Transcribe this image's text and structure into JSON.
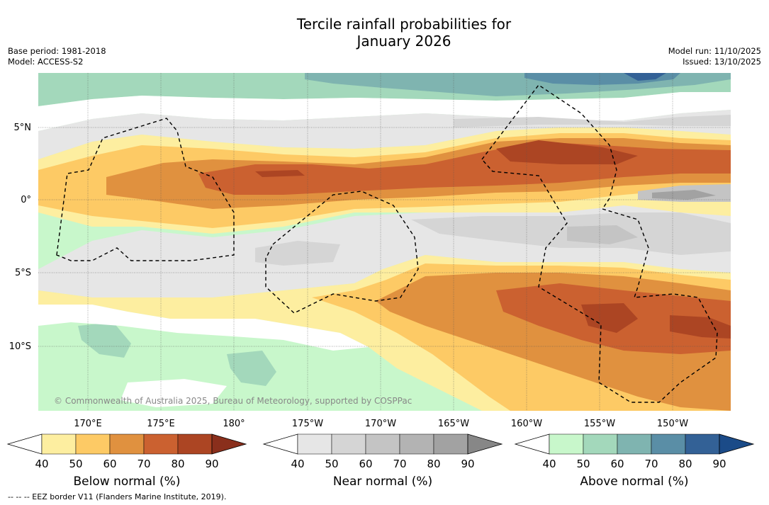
{
  "title_line1": "Tercile rainfall probabilities for",
  "title_line2": "January 2026",
  "base_period": "Base period: 1981-2018",
  "model": "Model: ACCESS-S2",
  "model_run": "Model run: 11/10/2025",
  "issued": "Issued: 13/10/2025",
  "copyright": "© Commonwealth of Australia 2025, Bureau of Meteorology, supported by COSPPac",
  "lat_labels": [
    "5°N",
    "0°",
    "5°S",
    "10°S"
  ],
  "lon_labels": [
    "170°E",
    "175°E",
    "180°",
    "175°W",
    "170°W",
    "165°W",
    "160°W",
    "155°W",
    "150°W"
  ],
  "colorbars": [
    {
      "label": "Below normal (%)",
      "ticks": [
        "40",
        "50",
        "60",
        "70",
        "80",
        "90"
      ],
      "colors": [
        "#fdeea0",
        "#fdca65",
        "#e0913f",
        "#cb6130",
        "#ac4523",
        "#8a2f1c"
      ]
    },
    {
      "label": "Near normal (%)",
      "ticks": [
        "40",
        "50",
        "60",
        "70",
        "80",
        "90"
      ],
      "colors": [
        "#e6e6e6",
        "#d5d5d5",
        "#c4c4c4",
        "#b3b3b3",
        "#a2a2a2",
        "#878787"
      ]
    },
    {
      "label": "Above normal (%)",
      "ticks": [
        "40",
        "50",
        "60",
        "70",
        "80",
        "90"
      ],
      "colors": [
        "#c8f7cb",
        "#a3d8bb",
        "#7fb4b0",
        "#5a8ea6",
        "#336196",
        "#1b4b88"
      ]
    }
  ],
  "footnote": "-- -- -- EEZ border V11 (Flanders Marine Institute, 2019)."
}
